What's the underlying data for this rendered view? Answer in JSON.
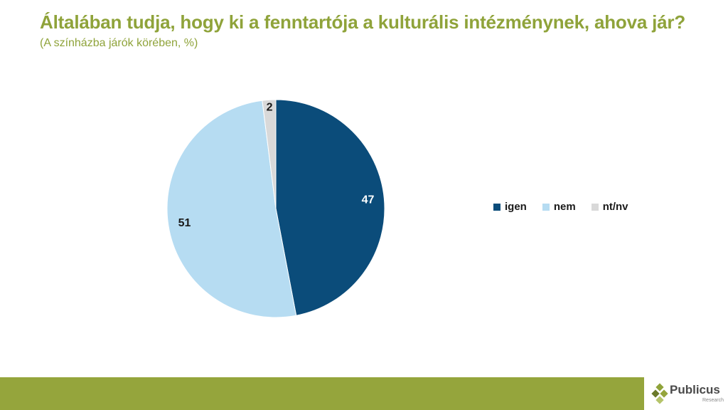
{
  "header": {
    "title": "Általában tudja, hogy ki a fenntartója a kulturális intézménynek, ahova jár?",
    "subtitle": "(A színházba járók körében, %)"
  },
  "colors": {
    "accent": "#8fa33a",
    "footer": "#95a53c"
  },
  "chart_data": {
    "type": "pie",
    "title": "Általában tudja, hogy ki a fenntartója a kulturális intézménynek, ahova jár?",
    "subtitle": "(A színházba járók körében, %)",
    "start_angle_deg": 0,
    "direction": "clockwise",
    "legend_position": "right",
    "slices": [
      {
        "label": "igen",
        "value": 47,
        "color": "#0b4c7a",
        "label_color": "#ffffff"
      },
      {
        "label": "nem",
        "value": 51,
        "color": "#b6dcf2",
        "label_color": "#1a1a1a"
      },
      {
        "label": "nt/nv",
        "value": 2,
        "color": "#d9d9d9",
        "label_color": "#1a1a1a"
      }
    ]
  },
  "logo": {
    "name": "Publicus",
    "sub": "Research",
    "icon": "diamond-cluster-icon"
  }
}
